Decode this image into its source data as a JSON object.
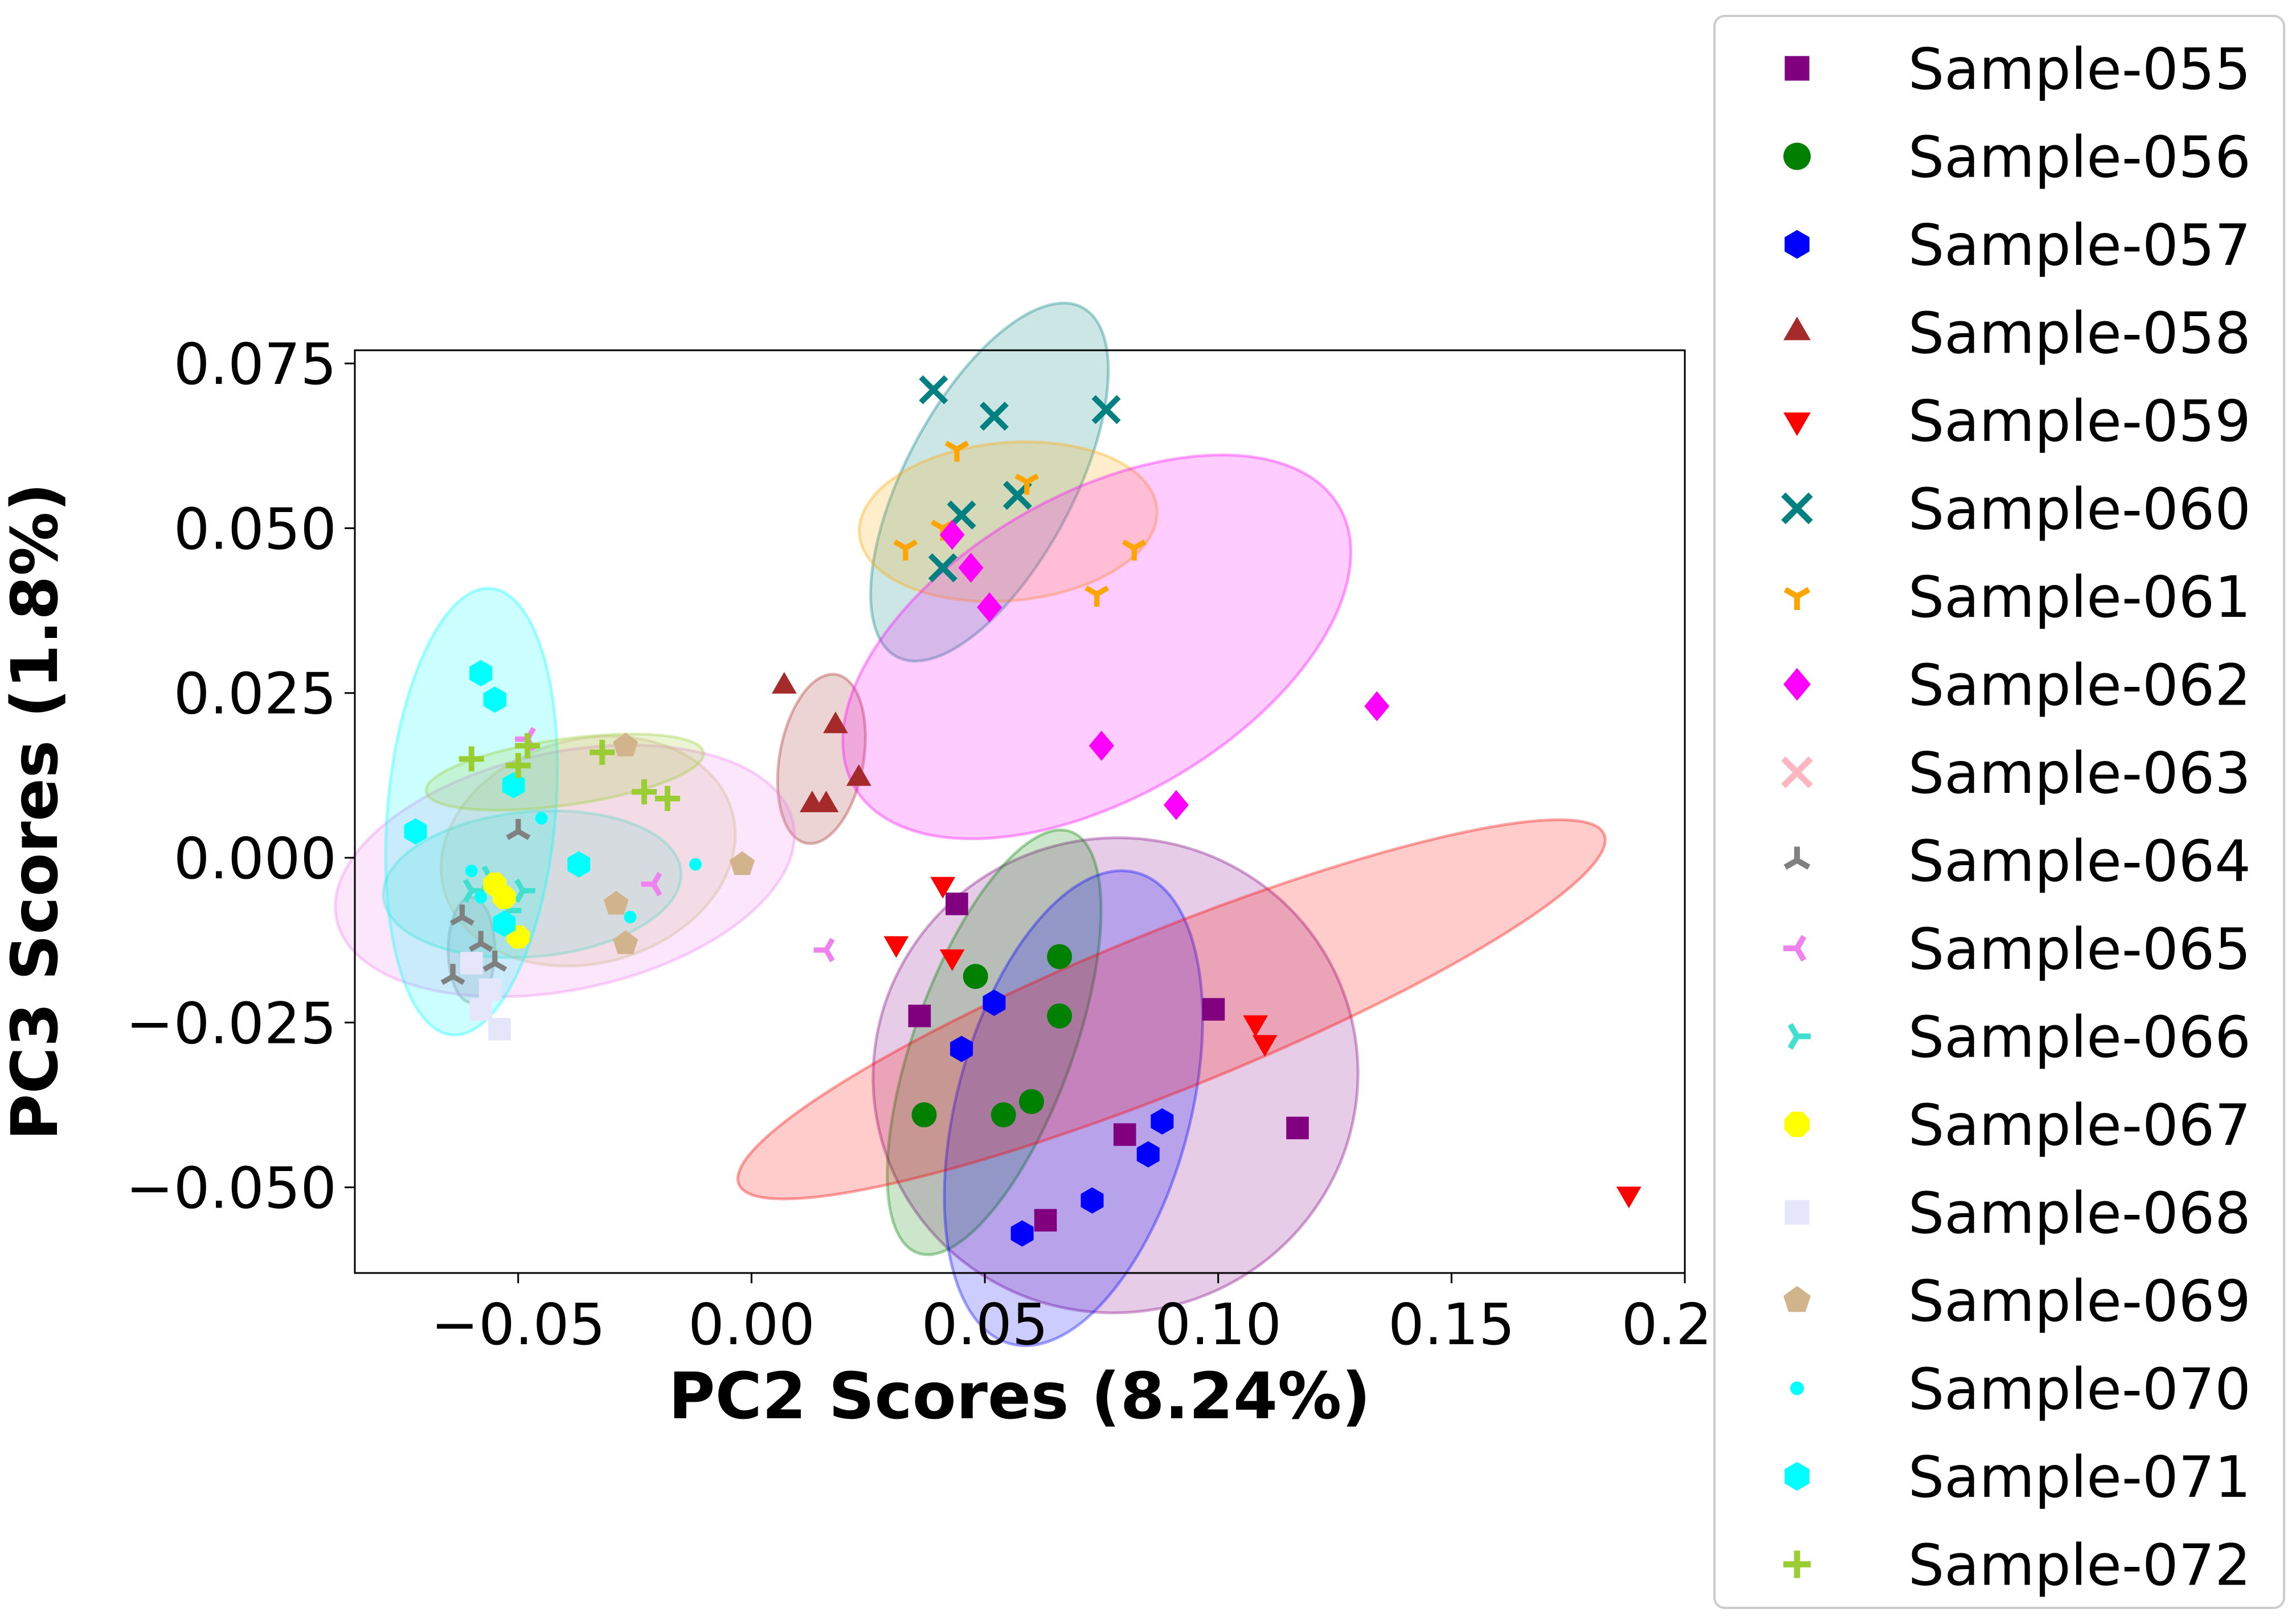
{
  "chart_data": {
    "type": "scatter",
    "xlabel": "PC2 Scores (8.24%)",
    "ylabel": "PC3 Scores (1.8%)",
    "xlim": [
      -0.085,
      0.2
    ],
    "ylim": [
      -0.063,
      0.077
    ],
    "xticks": [
      -0.05,
      0.0,
      0.05,
      0.1,
      0.15,
      0.2
    ],
    "xtick_labels": [
      "−0.05",
      "0.00",
      "0.05",
      "0.10",
      "0.15",
      "0.20"
    ],
    "yticks": [
      -0.05,
      -0.025,
      0.0,
      0.025,
      0.05,
      0.075
    ],
    "ytick_labels": [
      "−0.050",
      "−0.025",
      "0.000",
      "0.025",
      "0.050",
      "0.075"
    ],
    "grid": false,
    "legend_position": "outside-right",
    "series": [
      {
        "name": "Sample-055",
        "color": "#800080",
        "marker": "square",
        "x": [
          0.044,
          0.036,
          0.099,
          0.08,
          0.117,
          0.063
        ],
        "y": [
          -0.007,
          -0.024,
          -0.023,
          -0.042,
          -0.041,
          -0.055
        ],
        "ellipse": {
          "cx": 0.078,
          "cy": -0.033,
          "rx": 0.052,
          "ry": 0.036,
          "angle": -12
        }
      },
      {
        "name": "Sample-056",
        "color": "#008000",
        "marker": "circle",
        "x": [
          0.066,
          0.048,
          0.066,
          0.037,
          0.054,
          0.06
        ],
        "y": [
          -0.015,
          -0.018,
          -0.024,
          -0.039,
          -0.039,
          -0.037
        ],
        "ellipse": {
          "cx": 0.052,
          "cy": -0.028,
          "rx": 0.017,
          "ry": 0.034,
          "angle": 20
        }
      },
      {
        "name": "Sample-057",
        "color": "#0000ff",
        "marker": "hexagon",
        "x": [
          0.052,
          0.045,
          0.088,
          0.085,
          0.073,
          0.058
        ],
        "y": [
          -0.022,
          -0.029,
          -0.04,
          -0.045,
          -0.052,
          -0.057
        ],
        "ellipse": {
          "cx": 0.069,
          "cy": -0.038,
          "rx": 0.025,
          "ry": 0.037,
          "angle": 15
        }
      },
      {
        "name": "Sample-058",
        "color": "#a52a2a",
        "marker": "triangle-up",
        "x": [
          0.007,
          0.018,
          0.023,
          0.013,
          0.016
        ],
        "y": [
          0.026,
          0.02,
          0.012,
          0.008,
          0.008
        ],
        "ellipse": {
          "cx": 0.015,
          "cy": 0.015,
          "rx": 0.009,
          "ry": 0.013,
          "angle": 10
        }
      },
      {
        "name": "Sample-059",
        "color": "#ff0000",
        "marker": "triangle-down",
        "x": [
          0.041,
          0.031,
          0.043,
          0.108,
          0.11,
          0.188
        ],
        "y": [
          -0.004,
          -0.013,
          -0.015,
          -0.025,
          -0.028,
          -0.051
        ],
        "ellipse": {
          "cx": 0.09,
          "cy": -0.023,
          "rx": 0.1,
          "ry": 0.012,
          "angle": -22
        }
      },
      {
        "name": "Sample-060",
        "color": "#008080",
        "marker": "x",
        "x": [
          0.039,
          0.052,
          0.076,
          0.057,
          0.045,
          0.041
        ],
        "y": [
          0.071,
          0.067,
          0.068,
          0.055,
          0.052,
          0.044
        ],
        "ellipse": {
          "cx": 0.051,
          "cy": 0.057,
          "rx": 0.018,
          "ry": 0.03,
          "angle": 28
        }
      },
      {
        "name": "Sample-061",
        "color": "#ffa500",
        "marker": "tri-down",
        "x": [
          0.044,
          0.059,
          0.041,
          0.033,
          0.082,
          0.074
        ],
        "y": [
          0.062,
          0.057,
          0.05,
          0.047,
          0.047,
          0.04
        ],
        "ellipse": {
          "cx": 0.055,
          "cy": 0.051,
          "rx": 0.032,
          "ry": 0.012,
          "angle": -5
        }
      },
      {
        "name": "Sample-062",
        "color": "#ff00ff",
        "marker": "diamond",
        "x": [
          0.043,
          0.047,
          0.051,
          0.075,
          0.091,
          0.134
        ],
        "y": [
          0.049,
          0.044,
          0.038,
          0.017,
          0.008,
          0.023
        ],
        "ellipse": {
          "cx": 0.074,
          "cy": 0.032,
          "rx": 0.06,
          "ry": 0.023,
          "angle": -30
        }
      },
      {
        "name": "Sample-063",
        "color": "#ffb6c1",
        "marker": "x",
        "x": [],
        "y": [],
        "ellipse": null
      },
      {
        "name": "Sample-064",
        "color": "#808080",
        "marker": "tri-up",
        "x": [
          -0.062,
          -0.064,
          -0.058,
          -0.055,
          -0.05
        ],
        "y": [
          -0.009,
          -0.018,
          -0.013,
          -0.016,
          0.004
        ],
        "ellipse": {
          "cx": -0.06,
          "cy": -0.014,
          "rx": 0.005,
          "ry": 0.008,
          "angle": 0
        }
      },
      {
        "name": "Sample-065",
        "color": "#ee82ee",
        "marker": "tri-left",
        "x": [
          -0.048,
          -0.021,
          0.016
        ],
        "y": [
          0.018,
          -0.004,
          -0.014
        ],
        "ellipse": {
          "cx": -0.04,
          "cy": -0.002,
          "rx": 0.05,
          "ry": 0.018,
          "angle": -12
        }
      },
      {
        "name": "Sample-066",
        "color": "#40e0d0",
        "marker": "tri-right",
        "x": [
          -0.06,
          -0.056,
          -0.049,
          -0.052
        ],
        "y": [
          -0.005,
          -0.003,
          -0.005,
          -0.008
        ],
        "ellipse": {
          "cx": -0.047,
          "cy": -0.004,
          "rx": 0.032,
          "ry": 0.011,
          "angle": -5
        }
      },
      {
        "name": "Sample-067",
        "color": "#ffff00",
        "marker": "octagon",
        "x": [
          -0.055,
          -0.05,
          -0.053
        ],
        "y": [
          -0.004,
          -0.012,
          -0.006
        ],
        "ellipse": null
      },
      {
        "name": "Sample-068",
        "color": "#e6e6fa",
        "marker": "square",
        "x": [
          -0.06,
          -0.056,
          -0.058,
          -0.054
        ],
        "y": [
          -0.016,
          -0.02,
          -0.023,
          -0.026
        ],
        "ellipse": null
      },
      {
        "name": "Sample-069",
        "color": "#d2b48c",
        "marker": "pentagon",
        "x": [
          -0.027,
          -0.002,
          -0.029,
          -0.027
        ],
        "y": [
          0.017,
          -0.001,
          -0.007,
          -0.013
        ],
        "ellipse": {
          "cx": -0.035,
          "cy": 0.001,
          "rx": 0.032,
          "ry": 0.017,
          "angle": -15
        }
      },
      {
        "name": "Sample-070",
        "color": "#00ffff",
        "marker": "point",
        "x": [
          -0.045,
          -0.012,
          -0.026,
          -0.06,
          -0.058
        ],
        "y": [
          0.006,
          -0.001,
          -0.009,
          -0.002,
          -0.006
        ],
        "ellipse": null
      },
      {
        "name": "Sample-071",
        "color": "#00ffff",
        "marker": "hexagon",
        "x": [
          -0.058,
          -0.055,
          -0.072,
          -0.051,
          -0.037,
          -0.053
        ],
        "y": [
          0.028,
          0.024,
          0.004,
          0.011,
          -0.001,
          -0.01
        ],
        "ellipse": {
          "cx": -0.06,
          "cy": 0.007,
          "rx": 0.018,
          "ry": 0.034,
          "angle": 5
        }
      },
      {
        "name": "Sample-072",
        "color": "#9acd32",
        "marker": "plus",
        "x": [
          -0.06,
          -0.05,
          -0.048,
          -0.032,
          -0.023,
          -0.018
        ],
        "y": [
          0.015,
          0.014,
          0.017,
          0.016,
          0.01,
          0.009
        ],
        "ellipse": {
          "cx": -0.04,
          "cy": 0.013,
          "rx": 0.03,
          "ry": 0.005,
          "angle": -8
        }
      }
    ]
  }
}
